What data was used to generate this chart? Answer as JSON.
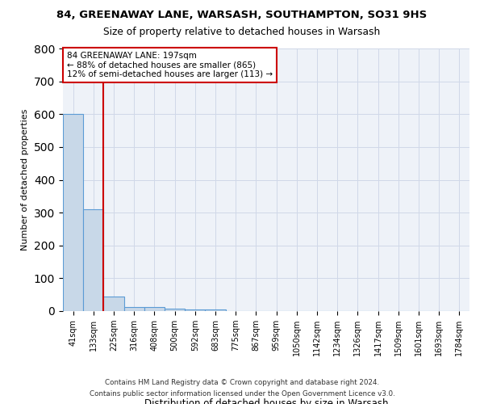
{
  "title1": "84, GREENAWAY LANE, WARSASH, SOUTHAMPTON, SO31 9HS",
  "title2": "Size of property relative to detached houses in Warsash",
  "xlabel": "Distribution of detached houses by size in Warsash",
  "ylabel": "Number of detached properties",
  "footer1": "Contains HM Land Registry data © Crown copyright and database right 2024.",
  "footer2": "Contains public sector information licensed under the Open Government Licence v3.0.",
  "bin_labels": [
    "41sqm",
    "133sqm",
    "225sqm",
    "316sqm",
    "408sqm",
    "500sqm",
    "592sqm",
    "683sqm",
    "775sqm",
    "867sqm",
    "959sqm",
    "1050sqm",
    "1142sqm",
    "1234sqm",
    "1326sqm",
    "1417sqm",
    "1509sqm",
    "1601sqm",
    "1693sqm",
    "1784sqm"
  ],
  "bar_values": [
    600,
    310,
    45,
    12,
    12,
    8,
    5,
    5,
    0,
    0,
    0,
    0,
    0,
    0,
    0,
    0,
    0,
    0,
    0,
    0
  ],
  "bar_color": "#c8d8e8",
  "bar_edge_color": "#5b9bd5",
  "annotation_text1": "84 GREENAWAY LANE: 197sqm",
  "annotation_text2": "← 88% of detached houses are smaller (865)",
  "annotation_text3": "12% of semi-detached houses are larger (113) →",
  "annotation_box_color": "#ffffff",
  "annotation_border_color": "#cc0000",
  "red_line_color": "#cc0000",
  "red_line_x": 1.5,
  "ylim": [
    0,
    800
  ],
  "yticks": [
    0,
    100,
    200,
    300,
    400,
    500,
    600,
    700,
    800
  ],
  "grid_color": "#d0d8e8",
  "bg_color": "#eef2f8"
}
